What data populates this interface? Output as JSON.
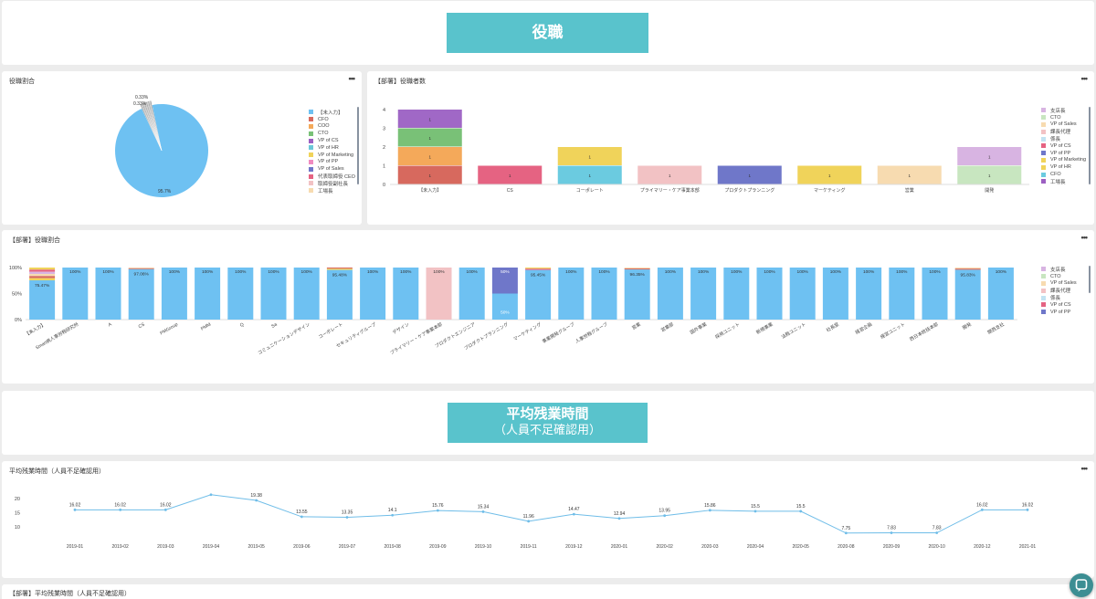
{
  "sections": {
    "role_banner": "役職",
    "overtime_banner_line1": "平均残業時間",
    "overtime_banner_line2": "（人員不足確認用）"
  },
  "panels": {
    "role_ratio": {
      "title": "役職割合",
      "menu": "•••"
    },
    "dept_role_count": {
      "title": "【部署】役職者数",
      "menu": "•••"
    },
    "dept_role_ratio": {
      "title": "【部署】役職割合",
      "menu": "•••"
    },
    "avg_overtime": {
      "title": "平均残業時間（人員不足確認用）",
      "menu": "•••"
    },
    "dept_avg_overtime": {
      "title": "【部署】平均残業時間（人員不足確認用）"
    }
  },
  "colors": {
    "teal_banner": "#59c3cc",
    "main_blue": "#6ec1f2",
    "line_blue": "#6fbde8",
    "chat_button": "#3c8e93"
  },
  "icons": {
    "chat": "chat-bubble-icon",
    "menu": "more-horizontal-icon"
  },
  "chart_data": [
    {
      "id": "role_ratio",
      "type": "pie",
      "categories": [
        "【未入力】",
        "CFO",
        "COO",
        "CTO",
        "VP of CS",
        "VP of HR",
        "VP of Marketing",
        "VP of PP",
        "VP of Sales",
        "代表取締役 CEO",
        "取締役副社長",
        "工場長"
      ],
      "colors": [
        "#6ec1f2",
        "#d7695e",
        "#f4a95a",
        "#79c177",
        "#9c5fc2",
        "#6bc8d8",
        "#f0d35a",
        "#f08bc0",
        "#6f77c9",
        "#e56382",
        "#f2c2c4",
        "#f7dbb0"
      ],
      "values": [
        95.7,
        0.33,
        0.33,
        0.33,
        0.33,
        0.33,
        0.33,
        0.33,
        0.33,
        0.33,
        0.33,
        0.33
      ],
      "labels": {
        "main": "95.7%",
        "small1": "0.33%",
        "small2": "0.33%"
      }
    },
    {
      "id": "dept_role_count",
      "type": "bar",
      "stacked": true,
      "categories": [
        "【未入力】",
        "CS",
        "コーポレート",
        "プライマリー・ケア事業本部",
        "プロダクトプランニング",
        "マーケティング",
        "営業",
        "開発"
      ],
      "ylim": [
        0,
        4
      ],
      "yticks": [
        0,
        1,
        2,
        3,
        4
      ],
      "series": [
        {
          "name": "CFO",
          "color": "#d7695e",
          "values": [
            1,
            0,
            0,
            0,
            0,
            0,
            0,
            0
          ]
        },
        {
          "name": "CFO",
          "color": "#6bcbe0",
          "values": [
            0,
            0,
            1,
            0,
            0,
            0,
            0,
            0
          ]
        },
        {
          "name": "COO",
          "color": "#f4a95a",
          "values": [
            1,
            0,
            0,
            0,
            0,
            0,
            0,
            0
          ]
        },
        {
          "name": "CTO",
          "color": "#c8e6c0",
          "values": [
            0,
            0,
            0,
            0,
            0,
            0,
            0,
            1
          ]
        },
        {
          "name": "CTO",
          "color": "#79c177",
          "values": [
            1,
            0,
            0,
            0,
            0,
            0,
            0,
            0
          ]
        },
        {
          "name": "VP of CS",
          "color": "#e56382",
          "values": [
            0,
            1,
            0,
            0,
            0,
            0,
            0,
            0
          ]
        },
        {
          "name": "VP of HR",
          "color": "#f0d35a",
          "values": [
            0,
            0,
            1,
            0,
            0,
            1,
            0,
            0
          ]
        },
        {
          "name": "VP of PP",
          "color": "#6f77c9",
          "values": [
            0,
            0,
            0,
            0,
            1,
            0,
            0,
            0
          ]
        },
        {
          "name": "課長代理",
          "color": "#f2c2c4",
          "values": [
            0,
            0,
            0,
            1,
            0,
            0,
            0,
            0
          ]
        },
        {
          "name": "VP of Sales",
          "color": "#f7dbb0",
          "values": [
            0,
            0,
            0,
            0,
            0,
            0,
            1,
            0
          ]
        },
        {
          "name": "支店長",
          "color": "#a068c6",
          "values": [
            1,
            0,
            0,
            0,
            0,
            0,
            0,
            0
          ]
        },
        {
          "name": "支店長",
          "color": "#d8b4e2",
          "values": [
            0,
            0,
            0,
            0,
            0,
            0,
            0,
            1
          ]
        }
      ],
      "legend": [
        {
          "label": "支店長",
          "color": "#d8b4e2"
        },
        {
          "label": "CTO",
          "color": "#c8e6c0"
        },
        {
          "label": "VP of Sales",
          "color": "#f7dbb0"
        },
        {
          "label": "課長代理",
          "color": "#f2c2c4"
        },
        {
          "label": "係長",
          "color": "#c2e3f2"
        },
        {
          "label": "VP of CS",
          "color": "#e56382"
        },
        {
          "label": "VP of PP",
          "color": "#6f77c9"
        },
        {
          "label": "VP of Marketing",
          "color": "#f0d35a"
        },
        {
          "label": "VP of HR",
          "color": "#f0d35a"
        },
        {
          "label": "CFO",
          "color": "#6bcbe0"
        },
        {
          "label": "工場長",
          "color": "#9c5fc2"
        }
      ]
    },
    {
      "id": "dept_role_ratio",
      "type": "bar",
      "stacked": true,
      "percent": true,
      "categories": [
        "【未入力】",
        "Smart病人事労務研究所",
        "A",
        "CS",
        "PMGroup",
        "PMM",
        "Q",
        "Sa",
        "コミュニケーションデザイン",
        "コーポレート",
        "セキュリティグループ",
        "デザイン",
        "プライマリー・ケア事業本部",
        "プロダクトエンジニア",
        "プロダクトプランニング",
        "マーケティング",
        "事業開発グループ",
        "人事労務グループ",
        "営業",
        "営業部",
        "国外事業",
        "採用ユニット",
        "新規事業",
        "法務ユニット",
        "社長室",
        "経営企画",
        "経営ユニット",
        "西日本統括本部",
        "開発",
        "関西支社"
      ],
      "ylim": [
        0,
        100
      ],
      "yticks": [
        "0%",
        "50%",
        "100%"
      ],
      "main_values": [
        75.47,
        100,
        100,
        97.06,
        100,
        100,
        100,
        100,
        100,
        95.48,
        100,
        100,
        100,
        100,
        50,
        95.45,
        100,
        100,
        96.35,
        100,
        100,
        100,
        100,
        100,
        100,
        100,
        100,
        100,
        95.83,
        100
      ],
      "main_labels": [
        "75.47%",
        "100%",
        "100%",
        "97.06%",
        "100%",
        "100%",
        "100%",
        "100%",
        "100%",
        "95.48%",
        "100%",
        "100%",
        "100%",
        "100%",
        "50%",
        "95.45%",
        "100%",
        "100%",
        "96.35%",
        "100%",
        "100%",
        "100%",
        "100%",
        "100%",
        "100%",
        "100%",
        "100%",
        "100%",
        "95.83%",
        "100%"
      ],
      "special": {
        "index_pink": 12,
        "index_split": 14,
        "split_top_label": "50%",
        "split_top_color": "#6f77c9"
      },
      "legend": [
        {
          "label": "支店長",
          "color": "#d8b4e2"
        },
        {
          "label": "CTO",
          "color": "#c8e6c0"
        },
        {
          "label": "VP of Sales",
          "color": "#f7dbb0"
        },
        {
          "label": "課長代理",
          "color": "#f2c2c4"
        },
        {
          "label": "係長",
          "color": "#c2e3f2"
        },
        {
          "label": "VP of CS",
          "color": "#e56382"
        },
        {
          "label": "VP of PP",
          "color": "#6f77c9"
        }
      ]
    },
    {
      "id": "avg_overtime",
      "type": "line",
      "x": [
        "2019-01",
        "2019-02",
        "2019-03",
        "2019-04",
        "2019-05",
        "2019-06",
        "2019-07",
        "2019-08",
        "2019-09",
        "2019-10",
        "2019-11",
        "2019-12",
        "2020-01",
        "2020-02",
        "2020-03",
        "2020-04",
        "2020-05",
        "2020-08",
        "2020-09",
        "2020-10",
        "2020-12",
        "2021-01"
      ],
      "values": [
        16.02,
        16.02,
        16.02,
        21.4,
        19.38,
        13.55,
        13.35,
        14.1,
        15.76,
        15.34,
        11.96,
        14.47,
        12.94,
        13.95,
        15.86,
        15.5,
        15.5,
        7.75,
        7.83,
        7.83,
        16.02,
        16.02
      ],
      "labels": [
        "16.02",
        "16.02",
        "16.02",
        "",
        "19.38",
        "13.55",
        "13.35",
        "14.1",
        "15.76",
        "15.34",
        "11.96",
        "14.47",
        "12.94",
        "13.95",
        "15.86",
        "15.5",
        "15.5",
        "7.75",
        "7.83",
        "7.83",
        "16.02",
        "16.02"
      ],
      "yticks": [
        10,
        15,
        20
      ]
    }
  ]
}
